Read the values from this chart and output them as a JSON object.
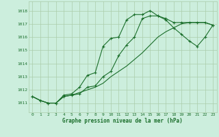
{
  "bg_color": "#cceedd",
  "grid_color": "#aaccaa",
  "line_color": "#1a6e2a",
  "title": "Graphe pression niveau de la mer (hPa)",
  "ylabel_ticks": [
    1011,
    1012,
    1013,
    1014,
    1015,
    1016,
    1017,
    1018
  ],
  "xlim": [
    -0.5,
    23.5
  ],
  "ylim": [
    1010.3,
    1018.7
  ],
  "series1_x": [
    0,
    1,
    2,
    3,
    4,
    5,
    6,
    7,
    8,
    9,
    10,
    11,
    12,
    13,
    14,
    15,
    16,
    17,
    18,
    19,
    20,
    21,
    22,
    23
  ],
  "series1_y": [
    1011.5,
    1011.2,
    1011.0,
    1011.0,
    1011.6,
    1011.7,
    1012.2,
    1013.1,
    1013.3,
    1015.3,
    1015.9,
    1016.0,
    1017.3,
    1017.7,
    1017.7,
    1018.0,
    1017.6,
    1017.4,
    1017.1,
    1017.1,
    1017.1,
    1017.1,
    1017.1,
    1016.9
  ],
  "series2_x": [
    0,
    1,
    2,
    3,
    4,
    5,
    6,
    7,
    8,
    9,
    10,
    11,
    12,
    13,
    14,
    15,
    16,
    17,
    18,
    19,
    20,
    21,
    22,
    23
  ],
  "series2_y": [
    1011.5,
    1011.2,
    1011.0,
    1011.0,
    1011.5,
    1011.6,
    1011.7,
    1012.2,
    1012.3,
    1013.0,
    1013.4,
    1014.6,
    1015.4,
    1016.0,
    1017.4,
    1017.6,
    1017.6,
    1017.3,
    1016.7,
    1016.2,
    1015.7,
    1015.3,
    1016.0,
    1016.9
  ],
  "series3_x": [
    0,
    1,
    2,
    3,
    4,
    5,
    6,
    7,
    8,
    9,
    10,
    11,
    12,
    13,
    14,
    15,
    16,
    17,
    18,
    19,
    20,
    21,
    22,
    23
  ],
  "series3_y": [
    1011.5,
    1011.2,
    1011.0,
    1011.0,
    1011.5,
    1011.6,
    1011.8,
    1012.0,
    1012.2,
    1012.5,
    1013.0,
    1013.4,
    1013.8,
    1014.3,
    1014.8,
    1015.4,
    1016.0,
    1016.4,
    1016.7,
    1017.0,
    1017.1,
    1017.1,
    1017.1,
    1016.9
  ]
}
